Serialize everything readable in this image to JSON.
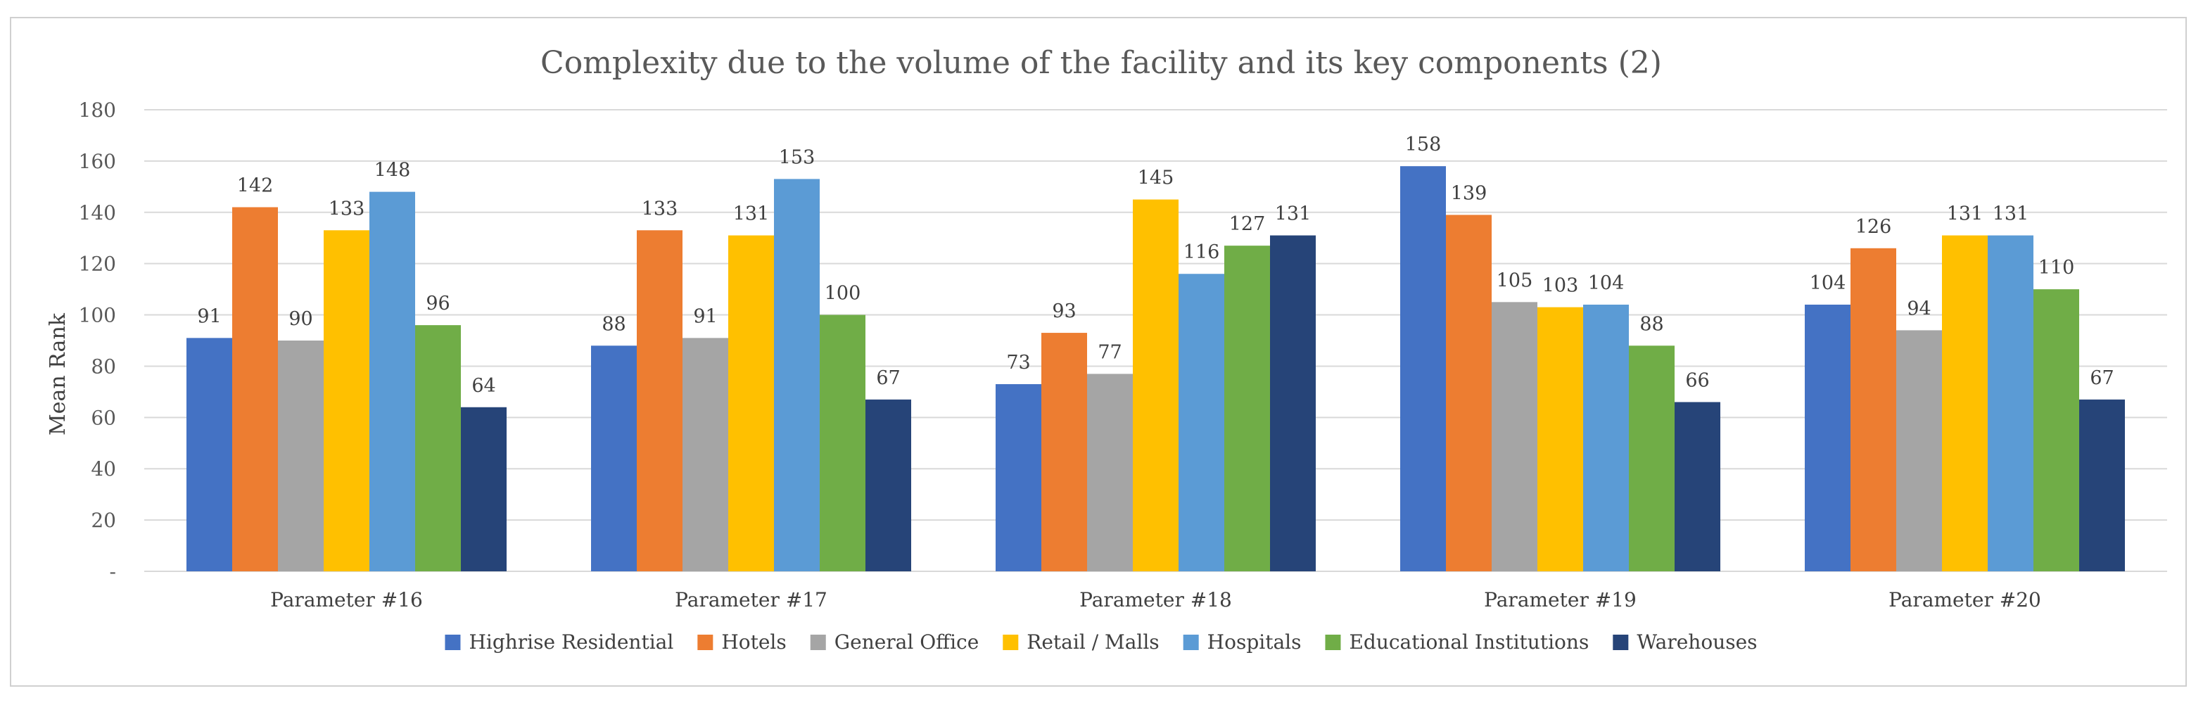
{
  "chart_data": {
    "type": "bar",
    "title": "Complexity due to the volume of the facility and its key components (2)",
    "xlabel": "",
    "ylabel": "Mean Rank",
    "ylim": [
      0,
      180
    ],
    "yticks": [
      0,
      20,
      40,
      60,
      80,
      100,
      120,
      140,
      160,
      180
    ],
    "ytick_labels": [
      "-",
      "20",
      "40",
      "60",
      "80",
      "100",
      "120",
      "140",
      "160",
      "180"
    ],
    "grid": true,
    "legend_position": "bottom",
    "categories": [
      "Parameter #16",
      "Parameter #17",
      "Parameter #18",
      "Parameter #19",
      "Parameter #20"
    ],
    "series": [
      {
        "name": "Highrise Residential",
        "color": "#4472c4",
        "values": [
          91,
          88,
          73,
          158,
          104
        ]
      },
      {
        "name": "Hotels",
        "color": "#ed7d31",
        "values": [
          142,
          133,
          93,
          139,
          126
        ]
      },
      {
        "name": "General Office",
        "color": "#a5a5a5",
        "values": [
          90,
          91,
          77,
          105,
          94
        ]
      },
      {
        "name": "Retail / Malls",
        "color": "#ffc000",
        "values": [
          133,
          131,
          145,
          103,
          131
        ]
      },
      {
        "name": "Hospitals",
        "color": "#5b9bd5",
        "values": [
          148,
          153,
          116,
          104,
          131
        ]
      },
      {
        "name": "Educational Institutions",
        "color": "#70ad47",
        "values": [
          96,
          100,
          127,
          88,
          110
        ]
      },
      {
        "name": "Warehouses",
        "color": "#264478",
        "values": [
          64,
          67,
          131,
          66,
          67
        ]
      }
    ]
  }
}
